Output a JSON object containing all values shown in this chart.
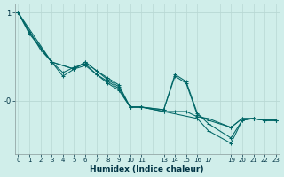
{
  "bg_color": "#d0eeea",
  "line_color": "#006666",
  "grid_color_v": "#b8d8d4",
  "grid_color_h": "#b8d8d4",
  "xlim": [
    -0.3,
    23.3
  ],
  "ylim": [
    -0.6,
    1.1
  ],
  "ytick_positions": [
    1.0,
    0.0
  ],
  "ytick_labels": [
    "1",
    "-0"
  ],
  "xtick_positions": [
    0,
    1,
    2,
    3,
    4,
    5,
    6,
    7,
    8,
    9,
    10,
    11,
    13,
    14,
    15,
    16,
    17,
    19,
    20,
    21,
    22,
    23
  ],
  "xtick_labels": [
    "0",
    "1",
    "2",
    "3",
    "4",
    "5",
    "6",
    "7",
    "8",
    "9",
    "10",
    "11",
    "13",
    "14",
    "15",
    "16",
    "17",
    "19",
    "20",
    "21",
    "22",
    "23"
  ],
  "xlabel": "Humidex (Indice chaleur)",
  "lines": [
    {
      "x": [
        0,
        1,
        3,
        4,
        5,
        6,
        7,
        8,
        9,
        10,
        11,
        13,
        14,
        15,
        16,
        17,
        19,
        20,
        21,
        22,
        23
      ],
      "y": [
        1.0,
        0.78,
        0.44,
        0.32,
        0.38,
        0.42,
        0.3,
        0.22,
        0.14,
        -0.07,
        -0.07,
        -0.12,
        -0.12,
        -0.12,
        -0.18,
        -0.2,
        -0.3,
        -0.2,
        -0.2,
        -0.22,
        -0.22
      ]
    },
    {
      "x": [
        0,
        2,
        3,
        4,
        5,
        6,
        7,
        8,
        9,
        10,
        11,
        13,
        16,
        17,
        19,
        20,
        21,
        22,
        23
      ],
      "y": [
        1.0,
        0.58,
        0.44,
        0.28,
        0.36,
        0.4,
        0.3,
        0.2,
        0.12,
        -0.07,
        -0.07,
        -0.12,
        -0.2,
        -0.34,
        -0.48,
        -0.22,
        -0.2,
        -0.22,
        -0.22
      ]
    },
    {
      "x": [
        0,
        1,
        3,
        5,
        6,
        7,
        8,
        9,
        10,
        11,
        13,
        14,
        15,
        16,
        17,
        19,
        20,
        21,
        22,
        23
      ],
      "y": [
        1.0,
        0.76,
        0.44,
        0.36,
        0.44,
        0.34,
        0.26,
        0.18,
        -0.07,
        -0.07,
        -0.1,
        0.3,
        0.22,
        -0.14,
        -0.26,
        -0.42,
        -0.22,
        -0.2,
        -0.22,
        -0.22
      ]
    },
    {
      "x": [
        0,
        3,
        5,
        6,
        8,
        9,
        10,
        11,
        13,
        14,
        15,
        16,
        17,
        19,
        20,
        21,
        22,
        23
      ],
      "y": [
        1.0,
        0.44,
        0.36,
        0.44,
        0.24,
        0.16,
        -0.07,
        -0.07,
        -0.1,
        0.28,
        0.2,
        -0.16,
        -0.22,
        -0.3,
        -0.2,
        -0.2,
        -0.22,
        -0.22
      ]
    }
  ]
}
